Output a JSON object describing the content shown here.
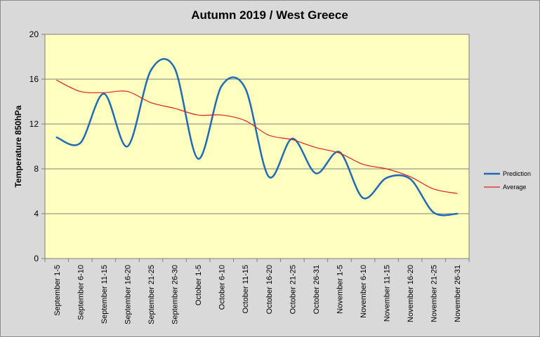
{
  "chart_data": {
    "type": "line",
    "title": "Autumn 2019 / West Greece",
    "xlabel": "",
    "ylabel": "Temperature 850hPa",
    "ylim": [
      0,
      20
    ],
    "yticks": [
      0,
      4,
      8,
      12,
      16,
      20
    ],
    "grid": true,
    "legend_position": "right",
    "categories": [
      "September 1-5",
      "September 6-10",
      "September 11-15",
      "September 16-20",
      "September 21-25",
      "September 26-30",
      "October 1-5",
      "October 6-10",
      "October 11-15",
      "October 16-20",
      "October 21-25",
      "October 26-31",
      "November 1-5",
      "November 6-10",
      "November 11-15",
      "November 16-20",
      "November 21-25",
      "November 26-31"
    ],
    "series": [
      {
        "name": "Prediction",
        "color": "#1f6bb5",
        "values": [
          10.8,
          10.3,
          14.7,
          10.0,
          16.8,
          17.0,
          8.9,
          15.4,
          15.2,
          7.3,
          10.7,
          7.6,
          9.5,
          5.4,
          7.2,
          7.1,
          4.1,
          4.0
        ]
      },
      {
        "name": "Average",
        "color": "#e0201b",
        "values": [
          15.9,
          14.9,
          14.8,
          14.9,
          13.9,
          13.4,
          12.8,
          12.8,
          12.3,
          11.0,
          10.6,
          9.9,
          9.4,
          8.4,
          8.0,
          7.3,
          6.2,
          5.8
        ]
      }
    ]
  }
}
